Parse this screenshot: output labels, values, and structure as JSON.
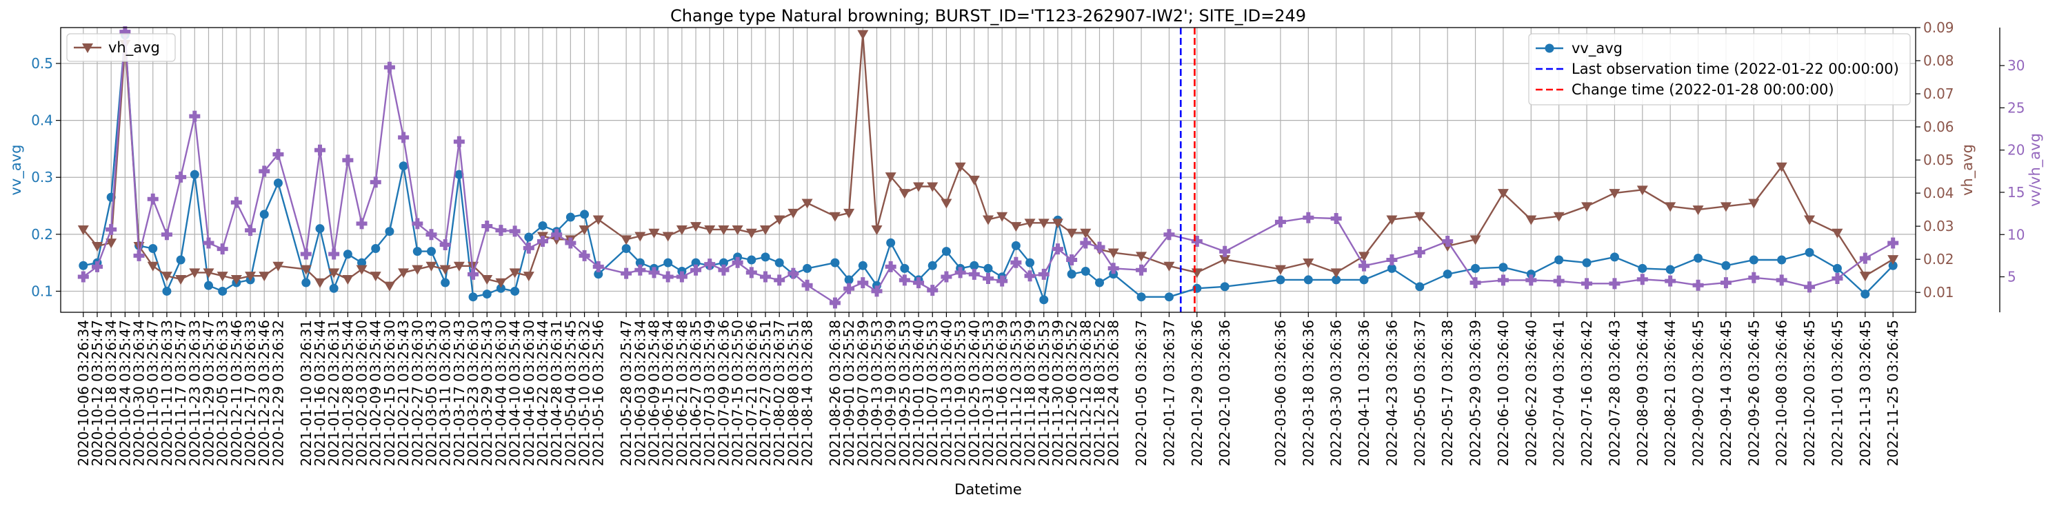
{
  "chart_data": {
    "type": "line",
    "title": "Change type Natural browning; BURST_ID='T123-262907-IW2'; SITE_ID=249",
    "xlabel": "Datetime",
    "ylabel_left": "vv_avg",
    "ylabel_right": "vh_avg",
    "ylabel_ratio": "vv/vh_avg",
    "grid": true,
    "x_dates": [
      "2020-10-06",
      "2020-10-12",
      "2020-10-18",
      "2020-10-24",
      "2020-10-30",
      "2020-11-05",
      "2020-11-11",
      "2020-11-17",
      "2020-11-23",
      "2020-11-29",
      "2020-12-05",
      "2020-12-11",
      "2020-12-17",
      "2020-12-23",
      "2020-12-29",
      "2021-01-10",
      "2021-01-16",
      "2021-01-22",
      "2021-01-28",
      "2021-02-03",
      "2021-02-09",
      "2021-02-15",
      "2021-02-21",
      "2021-02-27",
      "2021-03-05",
      "2021-03-11",
      "2021-03-17",
      "2021-03-23",
      "2021-03-29",
      "2021-04-04",
      "2021-04-10",
      "2021-04-16",
      "2021-04-22",
      "2021-04-28",
      "2021-05-04",
      "2021-05-10",
      "2021-05-16",
      "2021-05-28",
      "2021-06-03",
      "2021-06-09",
      "2021-06-15",
      "2021-06-21",
      "2021-06-27",
      "2021-07-03",
      "2021-07-09",
      "2021-07-15",
      "2021-07-21",
      "2021-07-27",
      "2021-08-02",
      "2021-08-08",
      "2021-08-14",
      "2021-08-26",
      "2021-09-01",
      "2021-09-07",
      "2021-09-13",
      "2021-09-19",
      "2021-09-25",
      "2021-10-01",
      "2021-10-07",
      "2021-10-13",
      "2021-10-19",
      "2021-10-25",
      "2021-10-31",
      "2021-11-06",
      "2021-11-12",
      "2021-11-18",
      "2021-11-24",
      "2021-11-30",
      "2021-12-06",
      "2021-12-12",
      "2021-12-18",
      "2021-12-24",
      "2022-01-05",
      "2022-01-17",
      "2022-01-29",
      "2022-02-10",
      "2022-03-06",
      "2022-03-18",
      "2022-03-30",
      "2022-04-11",
      "2022-04-23",
      "2022-05-05",
      "2022-05-17",
      "2022-05-29",
      "2022-06-10",
      "2022-06-22",
      "2022-07-04",
      "2022-07-16",
      "2022-07-28",
      "2022-08-09",
      "2022-08-21",
      "2022-09-02",
      "2022-09-14",
      "2022-09-26",
      "2022-10-08",
      "2022-10-20",
      "2022-11-01",
      "2022-11-13",
      "2022-11-25"
    ],
    "x_tick_labels": [
      "2020-10-06 03:26:34",
      "2020-10-12 03:25:47",
      "2020-10-18 03:26:34",
      "2020-10-24 03:25:47",
      "2020-10-30 03:26:34",
      "2020-11-05 03:25:47",
      "2020-11-11 03:26:33",
      "2020-11-17 03:25:47",
      "2020-11-23 03:26:33",
      "2020-11-29 03:25:47",
      "2020-12-05 03:26:33",
      "2020-12-11 03:25:46",
      "2020-12-17 03:26:33",
      "2020-12-23 03:25:46",
      "2020-12-29 03:26:32",
      "2021-01-10 03:26:31",
      "2021-01-16 03:25:44",
      "2021-01-22 03:26:31",
      "2021-01-28 03:25:44",
      "2021-02-03 03:26:30",
      "2021-02-09 03:25:44",
      "2021-02-15 03:26:30",
      "2021-02-21 03:25:43",
      "2021-02-27 03:26:30",
      "2021-03-05 03:25:43",
      "2021-03-11 03:26:30",
      "2021-03-17 03:25:43",
      "2021-03-23 03:26:30",
      "2021-03-29 03:25:43",
      "2021-04-04 03:26:30",
      "2021-04-10 03:25:44",
      "2021-04-16 03:26:30",
      "2021-04-22 03:25:44",
      "2021-04-28 03:26:31",
      "2021-05-04 03:25:45",
      "2021-05-10 03:26:32",
      "2021-05-16 03:25:46",
      "2021-05-28 03:25:47",
      "2021-06-03 03:26:34",
      "2021-06-09 03:25:48",
      "2021-06-15 03:26:34",
      "2021-06-21 03:25:48",
      "2021-06-27 03:26:35",
      "2021-07-03 03:25:49",
      "2021-07-09 03:26:36",
      "2021-07-15 03:25:50",
      "2021-07-21 03:26:36",
      "2021-07-27 03:25:51",
      "2021-08-02 03:26:37",
      "2021-08-08 03:25:51",
      "2021-08-14 03:26:38",
      "2021-08-26 03:26:38",
      "2021-09-01 03:25:52",
      "2021-09-07 03:26:39",
      "2021-09-13 03:25:53",
      "2021-09-19 03:26:39",
      "2021-09-25 03:25:53",
      "2021-10-01 03:26:40",
      "2021-10-07 03:25:53",
      "2021-10-13 03:26:40",
      "2021-10-19 03:25:53",
      "2021-10-25 03:26:40",
      "2021-10-31 03:25:53",
      "2021-11-06 03:26:39",
      "2021-11-12 03:25:53",
      "2021-11-18 03:26:39",
      "2021-11-24 03:25:53",
      "2021-11-30 03:26:39",
      "2021-12-06 03:25:52",
      "2021-12-12 03:26:38",
      "2021-12-18 03:25:52",
      "2021-12-24 03:26:38",
      "2022-01-05 03:26:37",
      "2022-01-17 03:26:37",
      "2022-01-29 03:26:36",
      "2022-02-10 03:26:36",
      "2022-03-06 03:26:36",
      "2022-03-18 03:26:36",
      "2022-03-30 03:26:36",
      "2022-04-11 03:26:36",
      "2022-04-23 03:26:36",
      "2022-05-05 03:26:37",
      "2022-05-17 03:26:38",
      "2022-05-29 03:26:39",
      "2022-06-10 03:26:40",
      "2022-06-22 03:26:40",
      "2022-07-04 03:26:41",
      "2022-07-16 03:26:42",
      "2022-07-28 03:26:43",
      "2022-08-09 03:26:44",
      "2022-08-21 03:26:44",
      "2022-09-02 03:26:45",
      "2022-09-14 03:26:45",
      "2022-09-26 03:26:45",
      "2022-10-08 03:26:46",
      "2022-10-20 03:26:45",
      "2022-11-01 03:26:45",
      "2022-11-13 03:26:45",
      "2022-11-25 03:26:45"
    ],
    "y_left": {
      "range": [
        0.063,
        0.563
      ],
      "ticks": [
        "0.1",
        "0.2",
        "0.3",
        "0.4",
        "0.5"
      ],
      "color": "#1f77b4"
    },
    "y_right": {
      "range": [
        0.004,
        0.09
      ],
      "ticks": [
        "0.01",
        "0.02",
        "0.03",
        "0.04",
        "0.05",
        "0.06",
        "0.07",
        "0.08",
        "0.09"
      ],
      "color": "#8c564b"
    },
    "y_ratio": {
      "range": [
        0.8,
        34.5
      ],
      "ticks": [
        "5",
        "10",
        "15",
        "20",
        "25",
        "30"
      ],
      "color": "#9467bd"
    },
    "series": [
      {
        "name": "vv_avg",
        "axis": "left",
        "color": "#1f77b4",
        "marker": "circle",
        "values": [
          0.145,
          0.15,
          0.265,
          0.55,
          0.18,
          0.175,
          0.1,
          0.155,
          0.305,
          0.11,
          0.1,
          0.115,
          0.12,
          0.235,
          0.29,
          0.115,
          0.21,
          0.105,
          0.165,
          0.15,
          0.175,
          0.205,
          0.32,
          0.17,
          0.17,
          0.115,
          0.305,
          0.09,
          0.095,
          0.105,
          0.1,
          0.195,
          0.215,
          0.205,
          0.23,
          0.235,
          0.13,
          0.175,
          0.15,
          0.14,
          0.15,
          0.135,
          0.15,
          0.145,
          0.15,
          0.16,
          0.155,
          0.16,
          0.15,
          0.13,
          0.14,
          0.15,
          0.12,
          0.145,
          0.11,
          0.185,
          0.14,
          0.12,
          0.145,
          0.17,
          0.14,
          0.145,
          0.14,
          0.125,
          0.18,
          0.15,
          0.085,
          0.225,
          0.13,
          0.135,
          0.115,
          0.13,
          0.09,
          0.09,
          0.105,
          0.108,
          0.12,
          0.12,
          0.12,
          0.12,
          0.14,
          0.108,
          0.13,
          0.14,
          0.142,
          0.13,
          0.155,
          0.15,
          0.16,
          0.14,
          0.138,
          0.158,
          0.145,
          0.155,
          0.155,
          0.168,
          0.14,
          0.095,
          0.145
        ]
      },
      {
        "name": "vh_avg",
        "axis": "right",
        "color": "#8c564b",
        "marker": "triangle-down",
        "values": [
          0.029,
          0.024,
          0.025,
          0.085,
          0.024,
          0.018,
          0.015,
          0.014,
          0.016,
          0.016,
          0.015,
          0.014,
          0.015,
          0.015,
          0.018,
          0.017,
          0.013,
          0.016,
          0.014,
          0.017,
          0.015,
          0.012,
          0.016,
          0.017,
          0.018,
          0.017,
          0.018,
          0.018,
          0.014,
          0.013,
          0.016,
          0.015,
          0.027,
          0.026,
          0.026,
          0.029,
          0.032,
          0.026,
          0.027,
          0.028,
          0.027,
          0.029,
          0.03,
          0.029,
          0.029,
          0.029,
          0.028,
          0.029,
          0.032,
          0.034,
          0.037,
          0.033,
          0.034,
          0.088,
          0.029,
          0.045,
          0.04,
          0.042,
          0.042,
          0.037,
          0.048,
          0.044,
          0.032,
          0.033,
          0.03,
          0.031,
          0.031,
          0.031,
          0.028,
          0.028,
          0.023,
          0.022,
          0.021,
          0.018,
          0.016,
          0.02,
          0.017,
          0.019,
          0.016,
          0.021,
          0.032,
          0.033,
          0.024,
          0.026,
          0.04,
          0.032,
          0.033,
          0.036,
          0.04,
          0.041,
          0.036,
          0.035,
          0.036,
          0.037,
          0.048,
          0.032,
          0.028,
          0.015,
          0.02
        ]
      },
      {
        "name": "vv/vh_avg",
        "axis": "ratio",
        "color": "#9467bd",
        "marker": "plus",
        "values": [
          5.0,
          6.2,
          10.6,
          34.0,
          7.5,
          14.2,
          10.0,
          16.8,
          24.0,
          9.0,
          8.3,
          13.8,
          10.5,
          17.5,
          19.5,
          7.7,
          20.0,
          7.7,
          18.8,
          11.3,
          16.2,
          29.8,
          21.5,
          11.3,
          10.0,
          8.8,
          21.0,
          5.3,
          11.0,
          10.5,
          10.4,
          8.4,
          9.2,
          10.0,
          9.0,
          7.5,
          6.2,
          5.4,
          5.8,
          5.5,
          5.0,
          5.0,
          5.8,
          6.5,
          5.8,
          6.7,
          5.5,
          5.0,
          4.6,
          5.4,
          4.0,
          1.9,
          3.6,
          4.3,
          3.3,
          6.2,
          4.6,
          4.3,
          3.4,
          5.0,
          5.5,
          5.3,
          4.8,
          4.5,
          6.7,
          5.1,
          5.3,
          8.3,
          7.0,
          9.0,
          8.5,
          6.0,
          5.8,
          10.0,
          9.2,
          8.0,
          11.5,
          12.0,
          11.9,
          6.3,
          7.0,
          7.9,
          9.2,
          4.3,
          4.6,
          4.6,
          4.5,
          4.2,
          4.2,
          4.7,
          4.5,
          4.0,
          4.3,
          4.9,
          4.6,
          3.8,
          4.8,
          7.2,
          9.0
        ]
      }
    ],
    "vlines": [
      {
        "name": "Last observation time (2022-01-22 00:00:00)",
        "date": "2022-01-22",
        "color": "#0000ff",
        "style": "dashed"
      },
      {
        "name": "Change time (2022-01-28 00:00:00)",
        "date": "2022-01-28",
        "color": "#ff0000",
        "style": "dashed"
      }
    ],
    "legend_left": {
      "placement": "top-left",
      "entries": [
        "vh_avg"
      ]
    },
    "legend_right": {
      "placement": "top-right",
      "entries": [
        "vv_avg",
        "Last observation time (2022-01-22 00:00:00)",
        "Change time (2022-01-28 00:00:00)"
      ]
    }
  }
}
